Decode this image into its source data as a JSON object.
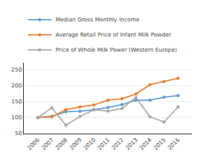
{
  "chart_data": {
    "type": "line",
    "x": [
      2006,
      2007,
      2008,
      2009,
      2010,
      2011,
      2012,
      2013,
      2014,
      2015,
      2016
    ],
    "series": [
      {
        "name": "Median Gross Monthly Income",
        "color": "#5B9BD5",
        "values": [
          100,
          104,
          118,
          119,
          124,
          131,
          140,
          154,
          154,
          163,
          168
        ]
      },
      {
        "name": "Average Retail Price of Infant Milk Powder",
        "color": "#ED7D31",
        "values": [
          100,
          102,
          124,
          133,
          139,
          154,
          158,
          173,
          202,
          212,
          222
        ]
      },
      {
        "name": "Price of Whole Milk Power (Western Europe)",
        "color": "#A5A5A5",
        "values": [
          100,
          130,
          76,
          103,
          124,
          120,
          128,
          162,
          102,
          86,
          133
        ]
      }
    ],
    "xlim": [
      2005,
      2017
    ],
    "xticks": [
      2006,
      2007,
      2008,
      2009,
      2010,
      2011,
      2012,
      2013,
      2014,
      2015,
      2016
    ],
    "ylim": [
      50,
      270
    ],
    "yticks": [
      50,
      100,
      150,
      200,
      250
    ],
    "grid": true,
    "legend": "upper left",
    "marker": "circle"
  }
}
